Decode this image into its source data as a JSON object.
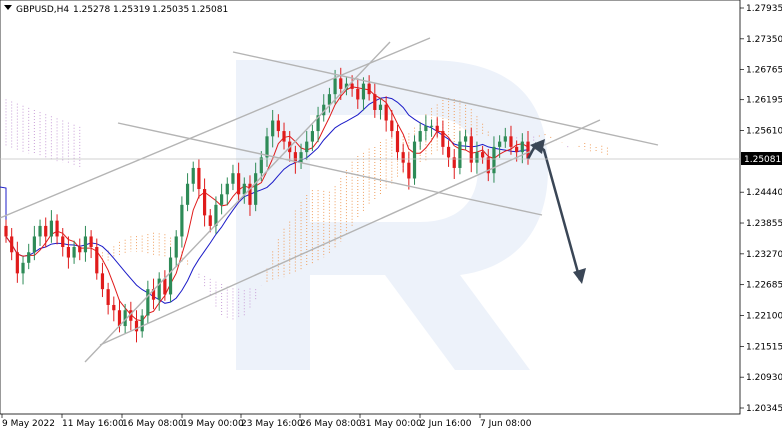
{
  "header": {
    "symbol": "GBPUSD,H4",
    "open": "1.25278",
    "high": "1.25319",
    "low": "1.25035",
    "close": "1.25081"
  },
  "chart_data": {
    "type": "candlestick",
    "symbol": "GBPUSD",
    "timeframe": "H4",
    "current_price": "1.25081",
    "ylim": [
      1.20345,
      1.27935
    ],
    "y_ticks": [
      "1.27935",
      "1.27350",
      "1.26765",
      "1.26195",
      "1.25610",
      "1.25081",
      "1.24440",
      "1.23855",
      "1.23270",
      "1.22685",
      "1.22100",
      "1.21515",
      "1.20930",
      "1.20345"
    ],
    "x_ticks": [
      "9 May 2022",
      "11 May 16:00",
      "16 May 08:00",
      "19 May 00:00",
      "23 May 16:00",
      "26 May 08:00",
      "31 May 00:00",
      "2 Jun 16:00",
      "7 Jun 08:00"
    ],
    "closes": [
      1.236,
      1.233,
      1.229,
      1.231,
      1.233,
      1.236,
      1.238,
      1.236,
      1.239,
      1.236,
      1.234,
      1.232,
      1.234,
      1.233,
      1.236,
      1.234,
      1.229,
      1.226,
      1.223,
      1.222,
      1.219,
      1.222,
      1.22,
      1.218,
      1.221,
      1.226,
      1.224,
      1.228,
      1.225,
      1.232,
      1.236,
      1.242,
      1.246,
      1.249,
      1.245,
      1.24,
      1.238,
      1.242,
      1.244,
      1.246,
      1.248,
      1.244,
      1.246,
      1.242,
      1.248,
      1.251,
      1.255,
      1.258,
      1.256,
      1.254,
      1.252,
      1.25,
      1.252,
      1.254,
      1.256,
      1.259,
      1.261,
      1.263,
      1.266,
      1.264,
      1.265,
      1.264,
      1.262,
      1.265,
      1.263,
      1.26,
      1.261,
      1.258,
      1.256,
      1.252,
      1.25,
      1.247,
      1.254,
      1.256,
      1.257,
      1.257,
      1.256,
      1.253,
      1.251,
      1.249,
      1.254,
      1.255,
      1.25,
      1.252,
      1.251,
      1.248,
      1.253,
      1.254,
      1.255,
      1.253,
      1.252,
      1.254,
      1.2508
    ],
    "lines": {
      "kijun_sen": "blue",
      "tenkan_sen": "red",
      "cloud_bullish": "#f0a060",
      "cloud_bearish": "#c9a0d8"
    },
    "colors": {
      "bull_candle": "#2e8b57",
      "bear_candle": "#e01b1b",
      "trend_lines": "#b0b0b0",
      "forecast_arrow": "#3a4656",
      "price_label_bg": "#000000"
    }
  }
}
